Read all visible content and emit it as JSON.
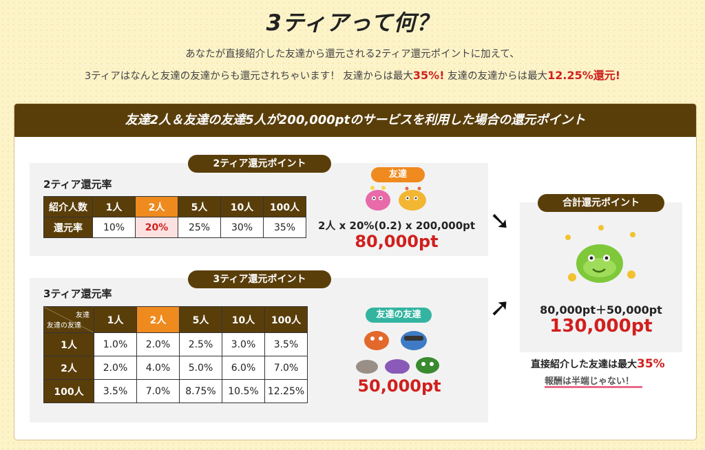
{
  "title": "3ティアって何？",
  "intro": {
    "line1": "あなたが直接紹介した友達から還元される2ティア還元ポイントに加えて、",
    "line2a": "3ティアはなんと友達の友達からも還元されちゃいます！ 友達からは最大",
    "line2b": "35%!",
    "line2c": " 友達の友達からは最大",
    "line2d": "12.25%還元!"
  },
  "banner": "友達2人＆友達の友達5人が200,000ptのサービスを利用した場合の還元ポイント",
  "tier2": {
    "pill": "2ティア還元ポイント",
    "subtitle": "2ティア還元率",
    "header": [
      "紹介人数",
      "1人",
      "2人",
      "5人",
      "10人",
      "100人"
    ],
    "row_label": "還元率",
    "values": [
      "10%",
      "20%",
      "25%",
      "30%",
      "35%"
    ]
  },
  "friend": {
    "pill": "友達",
    "calc": "2人 x 20%(0.2) x 200,000pt",
    "result": "80,000pt"
  },
  "tier3": {
    "pill": "3ティア還元ポイント",
    "subtitle": "3ティア還元率",
    "corner_top": "友達",
    "corner_bottom": "友達の友達",
    "header": [
      "1人",
      "2人",
      "5人",
      "10人",
      "100人"
    ],
    "rows": [
      {
        "label": "1人",
        "values": [
          "1.0%",
          "2.0%",
          "2.5%",
          "3.0%",
          "3.5%"
        ]
      },
      {
        "label": "2人",
        "values": [
          "2.0%",
          "4.0%",
          "5.0%",
          "6.0%",
          "7.0%"
        ]
      },
      {
        "label": "100人",
        "values": [
          "3.5%",
          "7.0%",
          "8.75%",
          "10.5%",
          "12.25%"
        ]
      }
    ]
  },
  "fof": {
    "pill": "友達の友達",
    "result": "50,000pt"
  },
  "total": {
    "pill": "合計還元ポイント",
    "calc": "80,000pt＋50,000pt",
    "result": "130,000pt"
  },
  "notes": {
    "line1a": "直接紹介した友達は最大",
    "line1b": "35%",
    "line2": "報酬は半端じゃない！"
  },
  "colors": {
    "brown": "#5a3e0a",
    "orange": "#ef8a1e",
    "red": "#d0201e",
    "teal": "#33b4a0",
    "background": "#fcf3c9"
  }
}
